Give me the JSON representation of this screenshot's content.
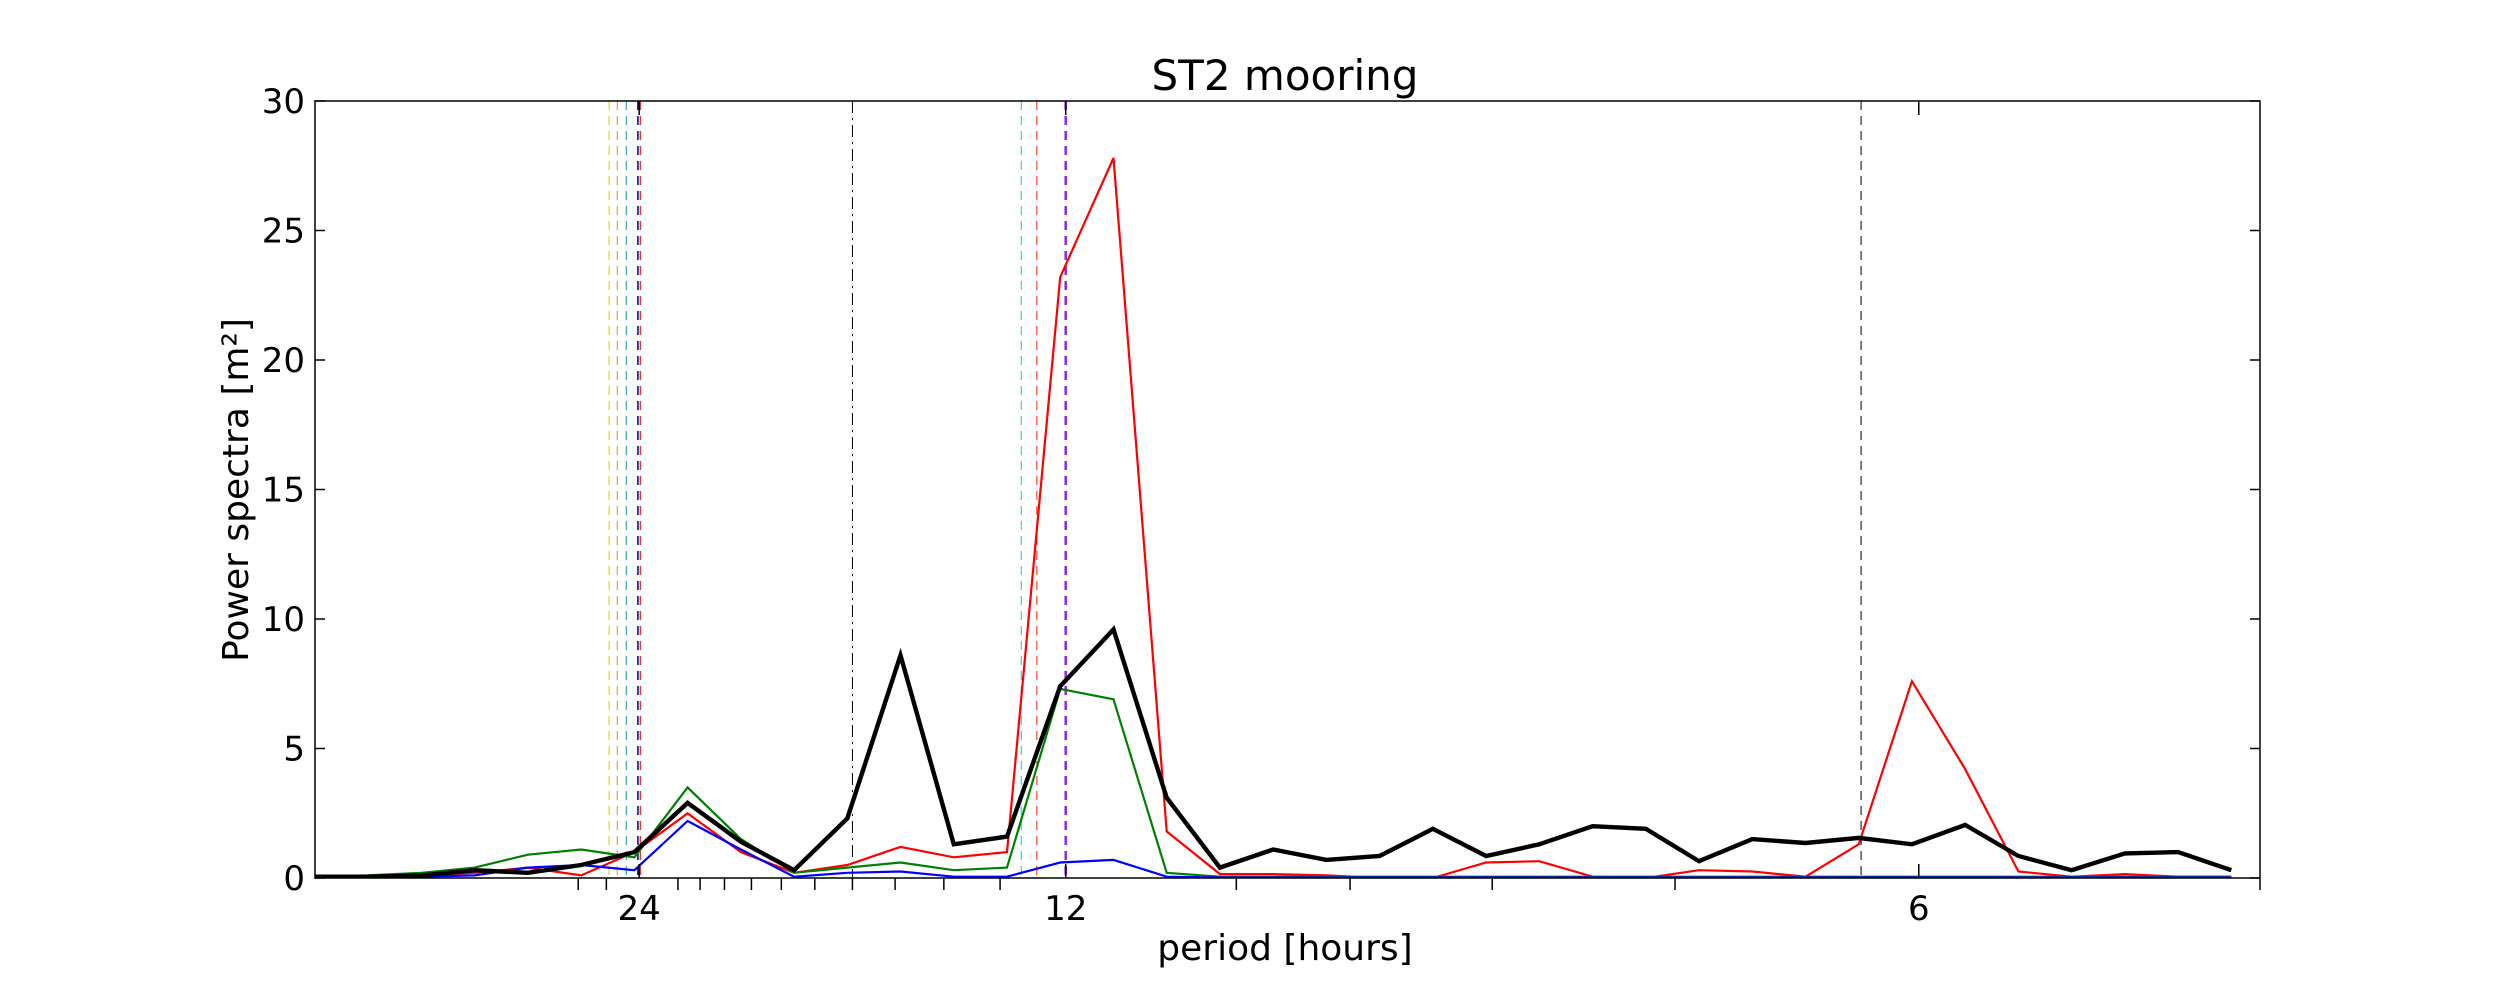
{
  "chart_data": {
    "type": "line",
    "title": "ST2 mooring",
    "xlabel": "period [hours]",
    "ylabel": "Power spectra [m²]",
    "xlabel_units_note": "",
    "x_axis": {
      "quantity": "frequency (cycles per hour)",
      "xlim": [
        0.01,
        0.2
      ],
      "major_ticks": [
        {
          "value": 0.041667,
          "label": "24"
        },
        {
          "value": 0.083333,
          "label": "12"
        },
        {
          "value": 0.166667,
          "label": "6"
        }
      ],
      "minor_ticks": [
        0.035714,
        0.038462,
        0.045455,
        0.047619,
        0.05,
        0.052632,
        0.055556,
        0.058824,
        0.0625,
        0.066667,
        0.071429,
        0.076923,
        0.1,
        0.111111,
        0.125,
        0.142857,
        0.2
      ]
    },
    "ylim": [
      0,
      30
    ],
    "yticks": [
      "0",
      "5",
      "10",
      "15",
      "20",
      "25",
      "30"
    ],
    "ytick_values": [
      0,
      5,
      10,
      15,
      20,
      25,
      30
    ],
    "grid": false,
    "legend": "none",
    "x": [
      0.01,
      0.0152,
      0.0204,
      0.0256,
      0.0308,
      0.036,
      0.0412,
      0.0464,
      0.0516,
      0.0568,
      0.062,
      0.0672,
      0.0724,
      0.0776,
      0.0828,
      0.088,
      0.0932,
      0.0984,
      0.1036,
      0.1088,
      0.114,
      0.1192,
      0.1244,
      0.1296,
      0.1348,
      0.14,
      0.1452,
      0.1504,
      0.1556,
      0.1608,
      0.166,
      0.1712,
      0.1764,
      0.1816,
      0.1868,
      0.192,
      0.1972
    ],
    "series": [
      {
        "color": "#ff0000",
        "line_width": 1,
        "values": [
          0.05,
          0.05,
          0.1,
          0.2,
          0.4,
          0.1,
          1.0,
          2.5,
          1.0,
          0.2,
          0.5,
          1.2,
          0.8,
          1.0,
          23.2,
          27.8,
          1.8,
          0.15,
          0.15,
          0.1,
          0.0,
          0.0,
          0.6,
          0.65,
          0.05,
          0.0,
          0.3,
          0.25,
          0.05,
          1.3,
          7.6,
          4.2,
          0.25,
          0.05,
          0.15,
          0.05,
          0.05
        ]
      },
      {
        "color": "#008000",
        "line_width": 1,
        "values": [
          0.05,
          0.1,
          0.2,
          0.4,
          0.9,
          1.1,
          0.8,
          3.5,
          1.5,
          0.2,
          0.4,
          0.6,
          0.3,
          0.4,
          7.3,
          6.9,
          0.2,
          0.05,
          0.05,
          0.05,
          0.05,
          0.05,
          0.05,
          0.05,
          0.05,
          0.05,
          0.05,
          0.05,
          0.05,
          0.05,
          0.05,
          0.05,
          0.05,
          0.05,
          0.05,
          0.05,
          0.05
        ]
      },
      {
        "color": "#0000ff",
        "line_width": 1,
        "values": [
          0.02,
          0.02,
          0.05,
          0.1,
          0.4,
          0.5,
          0.3,
          2.2,
          1.1,
          0.05,
          0.2,
          0.25,
          0.05,
          0.05,
          0.6,
          0.7,
          0.05,
          0.02,
          0.02,
          0.02,
          0.02,
          0.02,
          0.02,
          0.02,
          0.02,
          0.02,
          0.02,
          0.02,
          0.02,
          0.02,
          0.02,
          0.02,
          0.02,
          0.02,
          0.02,
          0.02,
          0.02
        ]
      },
      {
        "color": "#000000",
        "line_width": 2,
        "values": [
          0.05,
          0.05,
          0.1,
          0.3,
          0.2,
          0.5,
          1.0,
          2.9,
          1.4,
          0.3,
          2.3,
          8.6,
          1.3,
          1.6,
          7.4,
          9.6,
          3.1,
          0.4,
          1.1,
          0.7,
          0.85,
          1.9,
          0.85,
          1.3,
          2.0,
          1.9,
          0.65,
          1.5,
          1.35,
          1.55,
          1.3,
          2.05,
          0.85,
          0.3,
          0.95,
          1.0,
          0.3
        ]
      }
    ],
    "vertical_markers": [
      {
        "period_hours": 25.82,
        "color": "#e6c200",
        "style": "dashed",
        "width": 1
      },
      {
        "period_hours": 25.3,
        "color": "#ff8000",
        "style": "dashed",
        "width": 1
      },
      {
        "period_hours": 24.75,
        "color": "#00a0a0",
        "style": "dashed",
        "width": 1
      },
      {
        "period_hours": 24.07,
        "color": "#000080",
        "style": "dashed",
        "width": 1.5
      },
      {
        "period_hours": 23.93,
        "color": "#cc4040",
        "style": "dashed",
        "width": 1.5
      },
      {
        "period_hours": 16.0,
        "color": "#000000",
        "style": "dashdot",
        "width": 1
      },
      {
        "period_hours": 12.66,
        "color": "#00cccc",
        "style": "dashed",
        "width": 1
      },
      {
        "period_hours": 12.42,
        "color": "#ff2000",
        "style": "dashed",
        "width": 1
      },
      {
        "period_hours": 12.0,
        "color": "#8a2be2",
        "style": "dashed",
        "width": 2.5
      },
      {
        "period_hours": 6.21,
        "color": "#000000",
        "style": "dashed",
        "width": 1
      }
    ]
  }
}
